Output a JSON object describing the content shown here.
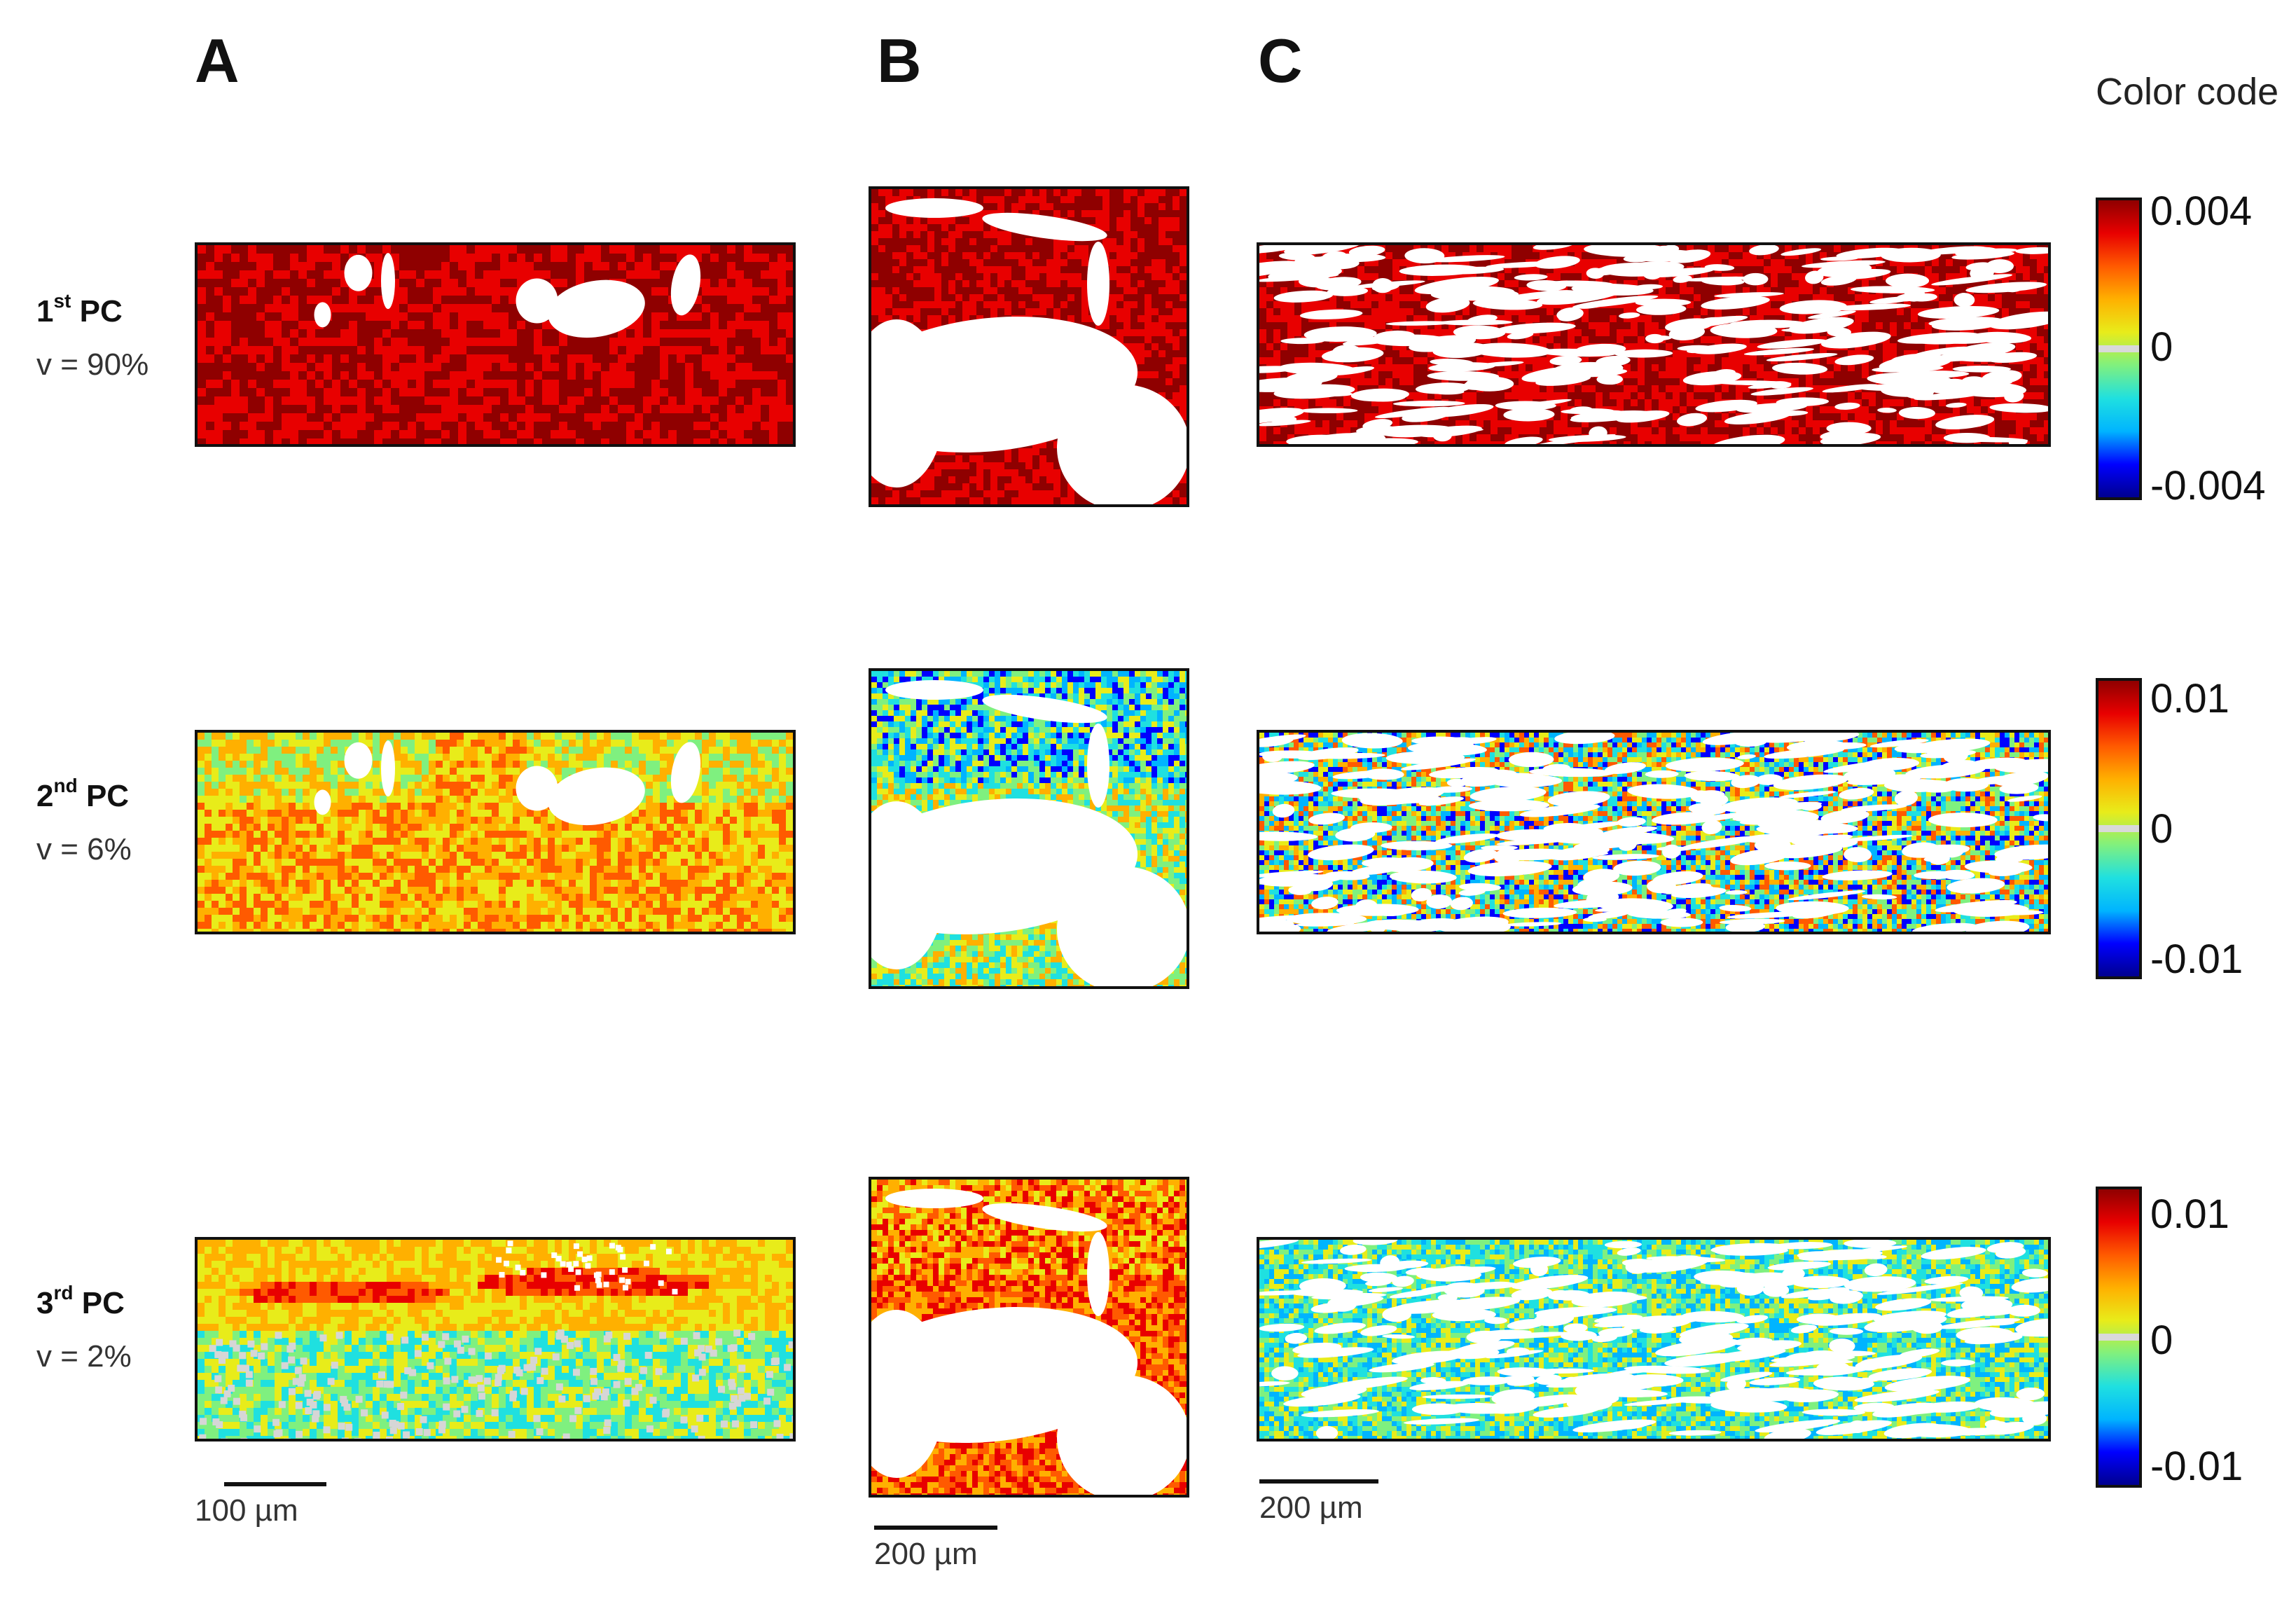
{
  "columns": [
    "A",
    "B",
    "C"
  ],
  "rows": [
    {
      "pc": "1",
      "sup": "st",
      "suffix": "PC",
      "variance": "v = 90%"
    },
    {
      "pc": "2",
      "sup": "nd",
      "suffix": "PC",
      "variance": "v = 6%"
    },
    {
      "pc": "3",
      "sup": "rd",
      "suffix": "PC",
      "variance": "v = 2%"
    }
  ],
  "scalebars": {
    "a": "100 µm",
    "b": "200 µm",
    "c": "200 µm"
  },
  "colorbar": {
    "title": "Color code",
    "scales": [
      {
        "max": "0.004",
        "zero": "0",
        "min": "-0.004"
      },
      {
        "max": "0.01",
        "zero": "0",
        "min": "-0.01"
      },
      {
        "max": "0.01",
        "zero": "0",
        "min": "-0.01"
      }
    ]
  },
  "colors": {
    "jet": [
      "#00008f",
      "#0000ff",
      "#00b4ff",
      "#1fe0e0",
      "#7ff07f",
      "#e8ec1a",
      "#ffb000",
      "#ff5a00",
      "#e80000",
      "#8f0000"
    ],
    "pc1_fill": "#a80c0c",
    "hole": "#ffffff",
    "missing": "#d6d6d6",
    "border": "#111111"
  }
}
